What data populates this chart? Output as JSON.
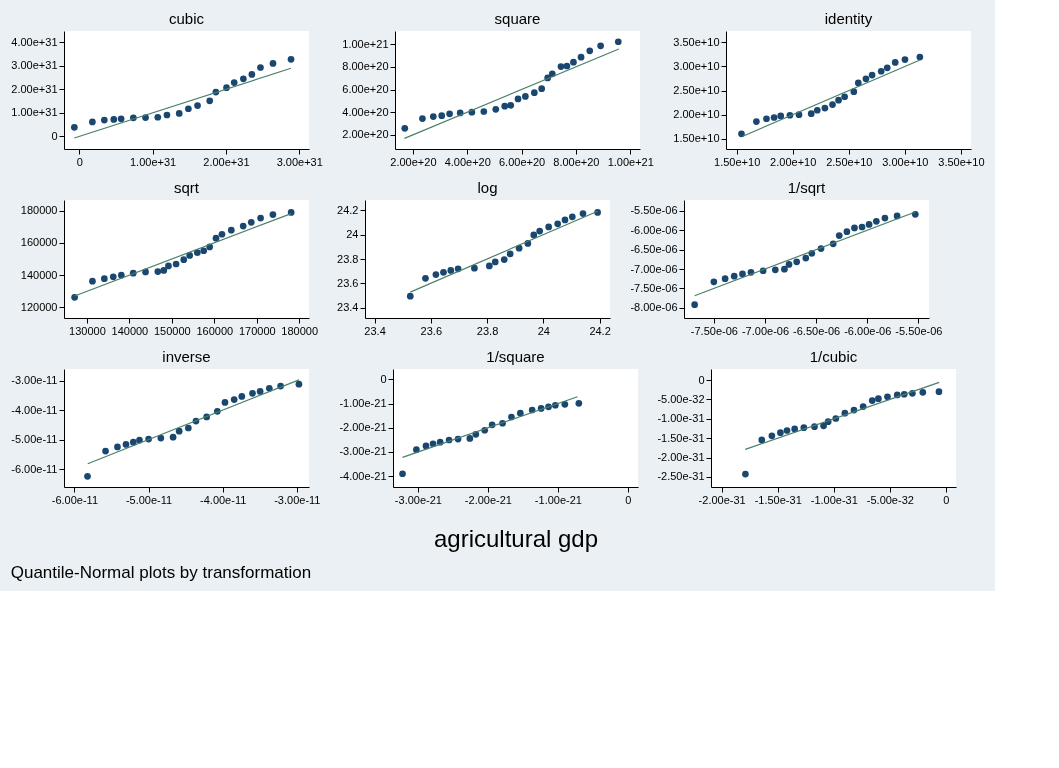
{
  "chart_data": [
    {
      "type": "scatter",
      "title": "cubic",
      "grid": false,
      "xlim": [
        -2.08e+30,
        3.133e+31
      ],
      "ylim": [
        -5.33e+30,
        4.467e+31
      ],
      "xticks": [
        0,
        {
          "value": 1e+31,
          "label": "1.00e+31"
        },
        {
          "value": 2e+31,
          "label": "2.00e+31"
        },
        {
          "value": 3e+31,
          "label": "3.00e+31"
        }
      ],
      "yticks": [
        0,
        {
          "value": 1e+31,
          "label": "1.00e+31"
        },
        {
          "value": 2e+31,
          "label": "2.00e+31"
        },
        {
          "value": 3e+31,
          "label": "3.00e+31"
        },
        {
          "value": 4e+31,
          "label": "4.00e+31"
        }
      ],
      "series": [
        {
          "marker": "circle",
          "color": "#1a476f",
          "x": [
            -6.7e+29,
            1.79e+30,
            3.42e+30,
            4.71e+30,
            5.71e+30,
            7.38e+30,
            9.04e+30,
            1.071e+31,
            1.196e+31,
            1.363e+31,
            1.488e+31,
            1.613e+31,
            1.779e+31,
            1.863e+31,
            2.008e+31,
            2.113e+31,
            2.238e+31,
            2.354e+31,
            2.471e+31,
            2.642e+31,
            2.888e+31
          ],
          "values": [
            3.87e+30,
            6.13e+30,
            6.93e+30,
            7.2e+30,
            7.47e+30,
            7.87e+30,
            8e+30,
            8.13e+30,
            9.07e+30,
            9.73e+30,
            1.173e+31,
            1.307e+31,
            1.507e+31,
            1.88e+31,
            2.067e+31,
            2.28e+31,
            2.44e+31,
            2.627e+31,
            2.92e+31,
            3.093e+31,
            3.267e+31
          ]
        },
        {
          "type": "line",
          "marker": "none",
          "line_style": "solid",
          "color": "#4a7f6b",
          "x": [
            -6.7e+29,
            2.888e+31
          ],
          "values": [
            -6.7e+29,
            2.888e+31
          ]
        }
      ]
    },
    {
      "type": "scatter",
      "title": "square",
      "grid": false,
      "xlim": [
        1.34e+20,
        1.036e+21
      ],
      "ylim": [
        7.5e+19,
        1.117e+21
      ],
      "xticks": [
        {
          "value": 2e+20,
          "label": "2.00e+20"
        },
        {
          "value": 4e+20,
          "label": "4.00e+20"
        },
        {
          "value": 6e+20,
          "label": "6.00e+20"
        },
        {
          "value": 8e+20,
          "label": "8.00e+20"
        },
        {
          "value": 1e+21,
          "label": "1.00e+21"
        }
      ],
      "yticks": [
        {
          "value": 2e+20,
          "label": "2.00e+20"
        },
        {
          "value": 4e+20,
          "label": "4.00e+20"
        },
        {
          "value": 6e+20,
          "label": "6.00e+20"
        },
        {
          "value": 8e+20,
          "label": "8.00e+20"
        },
        {
          "value": 1e+21,
          "label": "1.00e+21"
        }
      ],
      "series": [
        {
          "marker": "circle",
          "color": "#1a476f",
          "x": [
            1.7e+20,
            2.35e+20,
            2.75e+20,
            3.06e+20,
            3.35e+20,
            3.74e+20,
            4.17e+20,
            4.61e+20,
            5.05e+20,
            5.38e+20,
            5.6e+20,
            5.87e+20,
            6.14e+20,
            6.47e+20,
            6.74e+20,
            6.96e+20,
            7.13e+20,
            7.45e+20,
            7.67e+20,
            7.91e+20,
            8.19e+20,
            8.51e+20,
            8.91e+20,
            9.56e+20
          ],
          "values": [
            2.58e+20,
            3.44e+20,
            3.61e+20,
            3.69e+20,
            3.86e+20,
            3.94e+20,
            4e+20,
            4.06e+20,
            4.25e+20,
            4.53e+20,
            4.61e+20,
            5.17e+20,
            5.39e+20,
            5.72e+20,
            6.08e+20,
            7.03e+20,
            7.39e+20,
            8.03e+20,
            8.08e+20,
            8.42e+20,
            8.86e+20,
            9.42e+20,
            9.86e+20,
            1.022e+21
          ]
        },
        {
          "type": "line",
          "marker": "none",
          "line_style": "solid",
          "color": "#4a7f6b",
          "x": [
            1.69e+20,
            9.58e+20
          ],
          "values": [
            1.69e+20,
            9.58e+20
          ]
        }
      ]
    },
    {
      "type": "scatter",
      "title": "identity",
      "grid": false,
      "xlim": [
        14050000000.0,
        35900000000.0
      ],
      "ylim": [
        12900000000.0,
        37350000000.0
      ],
      "xticks": [
        {
          "value": 15000000000.0,
          "label": "1.50e+10"
        },
        {
          "value": 20000000000.0,
          "label": "2.00e+10"
        },
        {
          "value": 25000000000.0,
          "label": "2.50e+10"
        },
        {
          "value": 30000000000.0,
          "label": "3.00e+10"
        },
        {
          "value": 35000000000.0,
          "label": "3.50e+10"
        }
      ],
      "yticks": [
        {
          "value": 15000000000.0,
          "label": "1.50e+10"
        },
        {
          "value": 20000000000.0,
          "label": "2.00e+10"
        },
        {
          "value": 25000000000.0,
          "label": "2.50e+10"
        },
        {
          "value": 30000000000.0,
          "label": "3.00e+10"
        },
        {
          "value": 35000000000.0,
          "label": "3.50e+10"
        }
      ],
      "series": [
        {
          "marker": "circle",
          "color": "#1a476f",
          "x": [
            15430000000.0,
            16760000000.0,
            17660000000.0,
            18340000000.0,
            18930000000.0,
            19750000000.0,
            20560000000.0,
            21650000000.0,
            22190000000.0,
            22870000000.0,
            23550000000.0,
            24090000000.0,
            24630000000.0,
            25450000000.0,
            25850000000.0,
            26530000000.0,
            27080000000.0,
            27890000000.0,
            28430000000.0,
            29140000000.0,
            30010000000.0,
            31340000000.0
          ],
          "values": [
            16040000000.0,
            18580000000.0,
            19170000000.0,
            19430000000.0,
            19760000000.0,
            19890000000.0,
            20020000000.0,
            20210000000.0,
            20930000000.0,
            21380000000.0,
            22100000000.0,
            23010000000.0,
            23730000000.0,
            24770000000.0,
            26600000000.0,
            27440000000.0,
            28220000000.0,
            29010000000.0,
            29720000000.0,
            30830000000.0,
            31420000000.0,
            31940000000.0
          ]
        },
        {
          "type": "line",
          "marker": "none",
          "line_style": "solid",
          "color": "#4a7f6b",
          "x": [
            15500000000.0,
            31300000000.0
          ],
          "values": [
            15500000000.0,
            31300000000.0
          ]
        }
      ]
    },
    {
      "type": "scatter",
      "title": "sqrt",
      "grid": false,
      "xlim": [
        124600,
        182300
      ],
      "ylim": [
        113500,
        186500
      ],
      "xticks": [
        130000,
        140000,
        150000,
        160000,
        170000,
        180000
      ],
      "yticks": [
        120000,
        140000,
        160000,
        180000
      ],
      "series": [
        {
          "marker": "circle",
          "color": "#1a476f",
          "x": [
            127100,
            131300,
            134100,
            136200,
            138100,
            140900,
            143800,
            146700,
            148100,
            149200,
            151000,
            152800,
            154200,
            156000,
            157500,
            158900,
            160400,
            161800,
            164000,
            166800,
            168700,
            170900,
            173800,
            178100
          ],
          "values": [
            126300,
            136300,
            137800,
            139000,
            140000,
            141200,
            142000,
            142200,
            142900,
            145700,
            146900,
            149600,
            152200,
            153900,
            155100,
            157500,
            162900,
            165300,
            167800,
            170400,
            172700,
            175300,
            177500,
            178800
          ]
        },
        {
          "type": "line",
          "marker": "none",
          "line_style": "solid",
          "color": "#4a7f6b",
          "x": [
            127100,
            178100
          ],
          "values": [
            127100,
            178100
          ]
        }
      ]
    },
    {
      "type": "scatter",
      "title": "log",
      "grid": false,
      "xlim": [
        23.366,
        24.237
      ],
      "ylim": [
        23.314,
        24.286
      ],
      "xticks": [
        23.4,
        23.6,
        23.8,
        24,
        24.2
      ],
      "yticks": [
        23.4,
        23.6,
        23.8,
        24,
        24.2
      ],
      "series": [
        {
          "marker": "circle",
          "color": "#1a476f",
          "x": [
            23.527,
            23.581,
            23.618,
            23.645,
            23.671,
            23.697,
            23.755,
            23.808,
            23.829,
            23.861,
            23.882,
            23.914,
            23.945,
            23.966,
            23.987,
            24.019,
            24.051,
            24.077,
            24.103,
            24.141,
            24.193
          ],
          "values": [
            23.494,
            23.641,
            23.672,
            23.69,
            23.706,
            23.719,
            23.724,
            23.743,
            23.776,
            23.795,
            23.842,
            23.889,
            23.928,
            23.998,
            24.03,
            24.064,
            24.09,
            24.122,
            24.147,
            24.174,
            24.184
          ]
        },
        {
          "type": "line",
          "marker": "none",
          "line_style": "solid",
          "color": "#4a7f6b",
          "x": [
            23.527,
            24.193
          ],
          "values": [
            23.527,
            24.193
          ]
        }
      ]
    },
    {
      "type": "scatter",
      "title": "1/sqrt",
      "grid": false,
      "xlim": [
        -7.792e-06,
        -5.396e-06
      ],
      "ylim": [
        -8.261e-06,
        -5.222e-06
      ],
      "xticks": [
        {
          "value": -7.5e-06,
          "label": "-7.50e-06"
        },
        {
          "value": -7e-06,
          "label": "-7.00e-06"
        },
        {
          "value": -6.5e-06,
          "label": "-6.50e-06"
        },
        {
          "value": -6e-06,
          "label": "-6.00e-06"
        },
        {
          "value": -5.5e-06,
          "label": "-5.50e-06"
        }
      ],
      "yticks": [
        {
          "value": -8e-06,
          "label": "-8.00e-06"
        },
        {
          "value": -7.5e-06,
          "label": "-7.50e-06"
        },
        {
          "value": -7e-06,
          "label": "-7.00e-06"
        },
        {
          "value": -6.5e-06,
          "label": "-6.50e-06"
        },
        {
          "value": -6e-06,
          "label": "-6.00e-06"
        },
        {
          "value": -5.5e-06,
          "label": "-5.50e-06"
        }
      ],
      "series": [
        {
          "marker": "circle",
          "color": "#1a476f",
          "x": [
            -7.688e-06,
            -7.5e-06,
            -7.39e-06,
            -7.301e-06,
            -7.22e-06,
            -7.137e-06,
            -7.018e-06,
            -6.899e-06,
            -6.81e-06,
            -6.765e-06,
            -6.69e-06,
            -6.601e-06,
            -6.542e-06,
            -6.452e-06,
            -6.333e-06,
            -6.274e-06,
            -6.199e-06,
            -6.125e-06,
            -6.051e-06,
            -5.982e-06,
            -5.911e-06,
            -5.827e-06,
            -5.708e-06,
            -5.53e-06
          ],
          "values": [
            -7.918e-06,
            -7.33e-06,
            -7.248e-06,
            -7.183e-06,
            -7.126e-06,
            -7.085e-06,
            -7.044e-06,
            -7.02e-06,
            -7.003e-06,
            -6.881e-06,
            -6.815e-06,
            -6.717e-06,
            -6.595e-06,
            -6.472e-06,
            -6.35e-06,
            -6.137e-06,
            -6.039e-06,
            -5.941e-06,
            -5.917e-06,
            -5.851e-06,
            -5.77e-06,
            -5.688e-06,
            -5.631e-06,
            -5.59e-06
          ]
        },
        {
          "type": "line",
          "marker": "none",
          "line_style": "solid",
          "color": "#4a7f6b",
          "x": [
            -7.688e-06,
            -5.53e-06
          ],
          "values": [
            -7.688e-06,
            -5.53e-06
          ]
        }
      ]
    },
    {
      "type": "scatter",
      "title": "inverse",
      "grid": false,
      "xlim": [
        -6.14e-11,
        -2.836e-11
      ],
      "ylim": [
        -6.611e-11,
        -2.602e-11
      ],
      "xticks": [
        {
          "value": -6e-11,
          "label": "-6.00e-11"
        },
        {
          "value": -5e-11,
          "label": "-5.00e-11"
        },
        {
          "value": -4e-11,
          "label": "-4.00e-11"
        },
        {
          "value": -3e-11,
          "label": "-3.00e-11"
        }
      ],
      "yticks": [
        {
          "value": -6e-11,
          "label": "-6.00e-11"
        },
        {
          "value": -5e-11,
          "label": "-5.00e-11"
        },
        {
          "value": -4e-11,
          "label": "-4.00e-11"
        },
        {
          "value": -3e-11,
          "label": "-3.00e-11"
        }
      ],
      "annotations": [
        "Quantile-Normal plots by transformation"
      ],
      "series": [
        {
          "marker": "circle",
          "color": "#1a476f",
          "x": [
            -5.823e-11,
            -5.58e-11,
            -5.419e-11,
            -5.304e-11,
            -5.205e-11,
            -5.122e-11,
            -4.999e-11,
            -4.834e-11,
            -4.669e-11,
            -4.587e-11,
            -4.463e-11,
            -4.36e-11,
            -4.216e-11,
            -4.072e-11,
            -3.969e-11,
            -3.845e-11,
            -3.742e-11,
            -3.598e-11,
            -3.495e-11,
            -3.371e-11,
            -3.219e-11,
            -2.972e-11
          ],
          "values": [
            -6.247e-11,
            -5.389e-11,
            -5.25e-11,
            -5.164e-11,
            -5.089e-11,
            -5.014e-11,
            -4.982e-11,
            -4.95e-11,
            -4.917e-11,
            -4.714e-11,
            -4.607e-11,
            -4.371e-11,
            -4.231e-11,
            -4.039e-11,
            -3.739e-11,
            -3.642e-11,
            -3.535e-11,
            -3.428e-11,
            -3.363e-11,
            -3.256e-11,
            -3.181e-11,
            -3.117e-11
          ]
        },
        {
          "type": "line",
          "marker": "none",
          "line_style": "solid",
          "color": "#4a7f6b",
          "x": [
            -5.82e-11,
            -2.97e-11
          ],
          "values": [
            -5.82e-11,
            -2.97e-11
          ]
        }
      ]
    },
    {
      "type": "scatter",
      "title": "1/square",
      "xlabel": "agricultural gdp",
      "grid": false,
      "xlim": [
        -3.356e-21,
        1.44e-22
      ],
      "ylim": [
        -4.445e-21,
        4.26e-22
      ],
      "xticks": [
        {
          "value": -3e-21,
          "label": "-3.00e-21"
        },
        {
          "value": -2e-21,
          "label": "-2.00e-21"
        },
        {
          "value": -1e-21,
          "label": "-1.00e-21"
        },
        0
      ],
      "yticks": [
        {
          "value": -4e-21,
          "label": "-4.00e-21"
        },
        {
          "value": -3e-21,
          "label": "-3.00e-21"
        },
        {
          "value": -2e-21,
          "label": "-2.00e-21"
        },
        {
          "value": -1e-21,
          "label": "-1.00e-21"
        },
        0
      ],
      "series": [
        {
          "marker": "circle",
          "color": "#1a476f",
          "x": [
            -3.22e-21,
            -3.022e-21,
            -2.885e-21,
            -2.784e-21,
            -2.682e-21,
            -2.555e-21,
            -2.427e-21,
            -2.258e-21,
            -2.173e-21,
            -2.046e-21,
            -1.94e-21,
            -1.791e-21,
            -1.664e-21,
            -1.537e-21,
            -1.368e-21,
            -1.24e-21,
            -1.134e-21,
            -1.037e-21,
            -9.01e-22,
            -7.01e-22
          ],
          "values": [
            -3.898e-21,
            -2.906e-21,
            -2.75e-21,
            -2.66e-21,
            -2.594e-21,
            -2.504e-21,
            -2.465e-21,
            -2.438e-21,
            -2.27e-21,
            -2.102e-21,
            -1.879e-21,
            -1.813e-21,
            -1.555e-21,
            -1.398e-21,
            -1.266e-21,
            -1.203e-21,
            -1.137e-21,
            -1.07e-21,
            -1.031e-21,
            -9.92e-22
          ]
        },
        {
          "type": "line",
          "marker": "none",
          "line_style": "solid",
          "color": "#4a7f6b",
          "x": [
            -3.22e-21,
            -7.2e-22
          ],
          "values": [
            -3.22e-21,
            -7.2e-22
          ]
        }
      ]
    },
    {
      "type": "scatter",
      "title": "1/cubic",
      "grid": false,
      "xlim": [
        -2.095e-31,
        9e-33
      ],
      "ylim": [
        -2.761e-31,
        2.85e-32
      ],
      "xticks": [
        {
          "value": -2e-31,
          "label": "-2.00e-31"
        },
        {
          "value": -1.5e-31,
          "label": "-1.50e-31"
        },
        {
          "value": -1e-31,
          "label": "-1.00e-31"
        },
        {
          "value": -5e-32,
          "label": "-5.00e-32"
        },
        0
      ],
      "yticks": [
        {
          "value": -2.5e-31,
          "label": "-2.50e-31"
        },
        {
          "value": -2e-31,
          "label": "-2.00e-31"
        },
        {
          "value": -1.5e-31,
          "label": "-1.50e-31"
        },
        {
          "value": -1e-31,
          "label": "-1.00e-31"
        },
        {
          "value": -5e-32,
          "label": "-5.00e-32"
        },
        0
      ],
      "series": [
        {
          "marker": "circle",
          "color": "#1a476f",
          "x": [
            -1.788e-31,
            -1.642e-31,
            -1.552e-31,
            -1.476e-31,
            -1.417e-31,
            -1.349e-31,
            -1.267e-31,
            -1.172e-31,
            -1.091e-31,
            -1.05e-31,
            -9.82e-32,
            -9.01e-32,
            -8.2e-32,
            -7.38e-32,
            -6.57e-32,
            -6.02e-32,
            -5.21e-32,
            -4.34e-32,
            -3.72e-32,
            -2.99e-32,
            -2.06e-32,
            -6.2e-33
          ],
          "values": [
            -2.427e-31,
            -1.547e-31,
            -1.441e-31,
            -1.36e-31,
            -1.303e-31,
            -1.262e-31,
            -1.23e-31,
            -1.205e-31,
            -1.181e-31,
            -1.075e-31,
            -9.93e-32,
            -8.55e-32,
            -7.74e-32,
            -6.84e-32,
            -5.29e-32,
            -4.8e-32,
            -4.32e-32,
            -3.83e-32,
            -3.67e-32,
            -3.42e-32,
            -3.18e-32,
            -3.01e-32
          ]
        },
        {
          "type": "line",
          "marker": "none",
          "line_style": "solid",
          "color": "#4a7f6b",
          "x": [
            -1.79e-31,
            -6e-33
          ],
          "values": [
            -1.79e-31,
            -6e-33
          ]
        }
      ]
    }
  ]
}
